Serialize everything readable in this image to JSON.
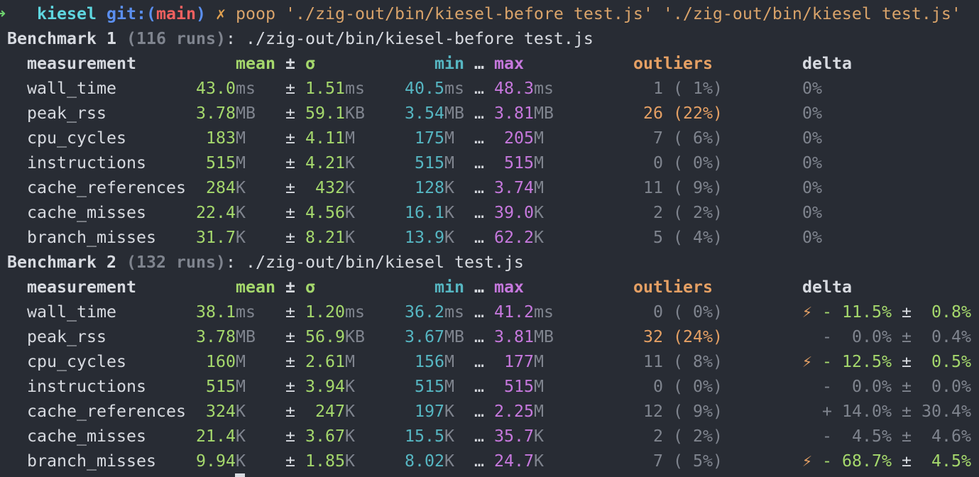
{
  "prompt": {
    "arrow": "➜",
    "dir": "kiesel",
    "git_open": "git:(",
    "branch": "main",
    "git_close": ")",
    "dirty": "✗",
    "command": "poop './zig-out/bin/kiesel-before test.js' './zig-out/bin/kiesel test.js'"
  },
  "benchmarks": [
    {
      "label": "Benchmark 1",
      "runs": "(116 runs)",
      "colon": ":",
      "command": "./zig-out/bin/kiesel-before test.js",
      "headers": {
        "measurement": "measurement",
        "mean": "mean",
        "plus_minus": "±",
        "sigma": "σ",
        "min": "min",
        "ellipsis": "…",
        "max": "max",
        "outliers": "outliers",
        "delta": "delta"
      },
      "rows": [
        {
          "name": "wall_time",
          "mean": "43.0",
          "mean_unit": "ms",
          "sd": "1.51",
          "sd_unit": "ms",
          "min": "40.5",
          "min_unit": "ms",
          "max": "48.3",
          "max_unit": "ms",
          "outliers": "1 ( 1%)",
          "outliers_color": "#7f848e",
          "delta": {
            "value": "0%",
            "color": "#7f848e"
          }
        },
        {
          "name": "peak_rss",
          "mean": "3.78",
          "mean_unit": "MB",
          "sd": "59.1",
          "sd_unit": "KB",
          "min": "3.54",
          "min_unit": "MB",
          "max": "3.81",
          "max_unit": "MB",
          "outliers": "26 (22%)",
          "outliers_color": "#e5a064",
          "delta": {
            "value": "0%",
            "color": "#7f848e"
          }
        },
        {
          "name": "cpu_cycles",
          "mean": "183",
          "mean_unit": "M",
          "sd": "4.11",
          "sd_unit": "M",
          "min": "175",
          "min_unit": "M",
          "max": "205",
          "max_unit": "M",
          "outliers": "7 ( 6%)",
          "outliers_color": "#7f848e",
          "delta": {
            "value": "0%",
            "color": "#7f848e"
          }
        },
        {
          "name": "instructions",
          "mean": "515",
          "mean_unit": "M",
          "sd": "4.21",
          "sd_unit": "K",
          "min": "515",
          "min_unit": "M",
          "max": "515",
          "max_unit": "M",
          "outliers": "0 ( 0%)",
          "outliers_color": "#7f848e",
          "delta": {
            "value": "0%",
            "color": "#7f848e"
          }
        },
        {
          "name": "cache_references",
          "mean": "284",
          "mean_unit": "K",
          "sd": "432",
          "sd_unit": "K",
          "min": "128",
          "min_unit": "K",
          "max": "3.74",
          "max_unit": "M",
          "outliers": "11 ( 9%)",
          "outliers_color": "#7f848e",
          "delta": {
            "value": "0%",
            "color": "#7f848e"
          }
        },
        {
          "name": "cache_misses",
          "mean": "22.4",
          "mean_unit": "K",
          "sd": "4.56",
          "sd_unit": "K",
          "min": "16.1",
          "min_unit": "K",
          "max": "39.0",
          "max_unit": "K",
          "outliers": "2 ( 2%)",
          "outliers_color": "#7f848e",
          "delta": {
            "value": "0%",
            "color": "#7f848e"
          }
        },
        {
          "name": "branch_misses",
          "mean": "31.7",
          "mean_unit": "K",
          "sd": "8.21",
          "sd_unit": "K",
          "min": "13.9",
          "min_unit": "K",
          "max": "62.2",
          "max_unit": "K",
          "outliers": "5 ( 4%)",
          "outliers_color": "#7f848e",
          "delta": {
            "value": "0%",
            "color": "#7f848e"
          }
        }
      ]
    },
    {
      "label": "Benchmark 2",
      "runs": "(132 runs)",
      "colon": ":",
      "command": "./zig-out/bin/kiesel test.js",
      "headers": {
        "measurement": "measurement",
        "mean": "mean",
        "plus_minus": "±",
        "sigma": "σ",
        "min": "min",
        "ellipsis": "…",
        "max": "max",
        "outliers": "outliers",
        "delta": "delta"
      },
      "rows": [
        {
          "name": "wall_time",
          "mean": "38.1",
          "mean_unit": "ms",
          "sd": "1.20",
          "sd_unit": "ms",
          "min": "36.2",
          "min_unit": "ms",
          "max": "41.2",
          "max_unit": "ms",
          "outliers": "0 ( 0%)",
          "outliers_color": "#7f848e",
          "delta": {
            "icon": "⚡",
            "sign": "-",
            "value": "11.5%",
            "err": "0.8%",
            "color": "#a5d86c"
          }
        },
        {
          "name": "peak_rss",
          "mean": "3.78",
          "mean_unit": "MB",
          "sd": "56.9",
          "sd_unit": "KB",
          "min": "3.67",
          "min_unit": "MB",
          "max": "3.81",
          "max_unit": "MB",
          "outliers": "32 (24%)",
          "outliers_color": "#e5a064",
          "delta": {
            "sign": "-",
            "value": "0.0%",
            "err": "0.4%",
            "color": "#7f848e"
          }
        },
        {
          "name": "cpu_cycles",
          "mean": "160",
          "mean_unit": "M",
          "sd": "2.61",
          "sd_unit": "M",
          "min": "156",
          "min_unit": "M",
          "max": "177",
          "max_unit": "M",
          "outliers": "11 ( 8%)",
          "outliers_color": "#7f848e",
          "delta": {
            "icon": "⚡",
            "sign": "-",
            "value": "12.5%",
            "err": "0.5%",
            "color": "#a5d86c"
          }
        },
        {
          "name": "instructions",
          "mean": "515",
          "mean_unit": "M",
          "sd": "3.94",
          "sd_unit": "K",
          "min": "515",
          "min_unit": "M",
          "max": "515",
          "max_unit": "M",
          "outliers": "0 ( 0%)",
          "outliers_color": "#7f848e",
          "delta": {
            "sign": "-",
            "value": "0.0%",
            "err": "0.0%",
            "color": "#7f848e"
          }
        },
        {
          "name": "cache_references",
          "mean": "324",
          "mean_unit": "K",
          "sd": "247",
          "sd_unit": "K",
          "min": "197",
          "min_unit": "K",
          "max": "2.25",
          "max_unit": "M",
          "outliers": "12 ( 9%)",
          "outliers_color": "#7f848e",
          "delta": {
            "sign": "+",
            "value": "14.0%",
            "err": "30.4%",
            "color": "#7f848e"
          }
        },
        {
          "name": "cache_misses",
          "mean": "21.4",
          "mean_unit": "K",
          "sd": "3.67",
          "sd_unit": "K",
          "min": "15.5",
          "min_unit": "K",
          "max": "35.7",
          "max_unit": "K",
          "outliers": "2 ( 2%)",
          "outliers_color": "#7f848e",
          "delta": {
            "sign": "-",
            "value": "4.5%",
            "err": "4.6%",
            "color": "#7f848e"
          }
        },
        {
          "name": "branch_misses",
          "mean": "9.94",
          "mean_unit": "K",
          "sd": "1.85",
          "sd_unit": "K",
          "min": "8.02",
          "min_unit": "K",
          "max": "24.7",
          "max_unit": "K",
          "outliers": "7 ( 5%)",
          "outliers_color": "#7f848e",
          "delta": {
            "icon": "⚡",
            "sign": "-",
            "value": "68.7%",
            "err": "4.5%",
            "color": "#a5d86c"
          }
        }
      ]
    }
  ]
}
